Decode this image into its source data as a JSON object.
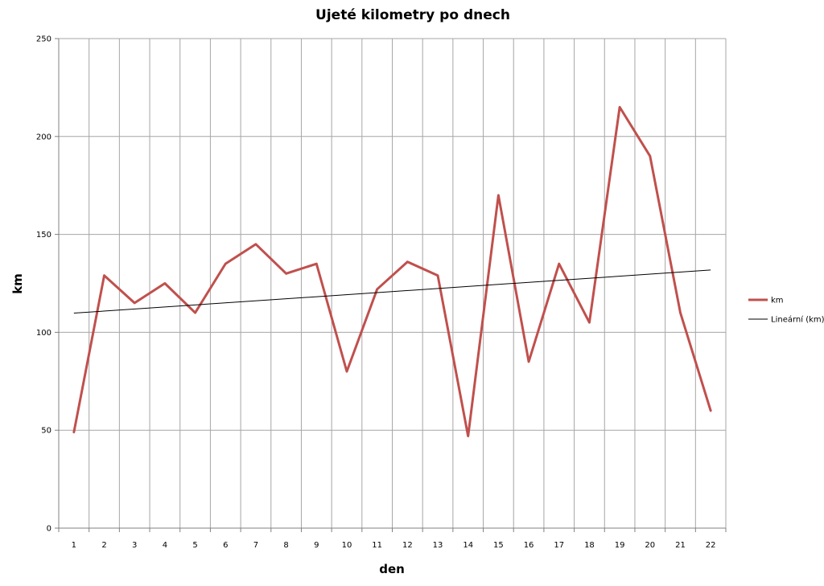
{
  "chart_data": {
    "type": "line",
    "title": "Ujeté kilometry po dnech",
    "xlabel": "den",
    "ylabel": "km",
    "categories": [
      "1",
      "2",
      "3",
      "4",
      "5",
      "6",
      "7",
      "8",
      "9",
      "10",
      "11",
      "12",
      "13",
      "14",
      "15",
      "16",
      "17",
      "18",
      "19",
      "20",
      "21",
      "22"
    ],
    "ylim": [
      0,
      250
    ],
    "yticks": [
      0,
      50,
      100,
      150,
      200,
      250
    ],
    "grid": true,
    "legend_position": "right",
    "series": [
      {
        "name": "km",
        "color": "#c0504d",
        "values": [
          49,
          129,
          115,
          125,
          110,
          135,
          145,
          130,
          135,
          80,
          122,
          136,
          129,
          47,
          170,
          85,
          135,
          105,
          215,
          190,
          110,
          60
        ]
      },
      {
        "name": "Lineární (km)",
        "color": "#000000",
        "trendline": "linear",
        "values": [
          109.8,
          110.8,
          111.9,
          112.9,
          114.0,
          115.0,
          116.1,
          117.1,
          118.2,
          119.2,
          120.3,
          121.3,
          122.4,
          123.4,
          124.5,
          125.5,
          126.6,
          127.6,
          128.7,
          129.7,
          130.8,
          131.8
        ]
      }
    ]
  }
}
